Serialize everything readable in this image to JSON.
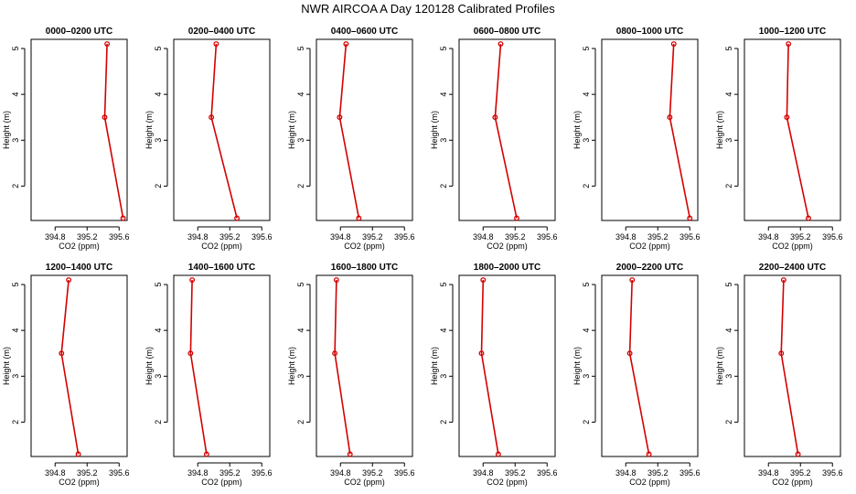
{
  "title": "NWR AIRCOA A  Day 120128  Calibrated Profiles",
  "colors": {
    "line": "#d40000",
    "frame": "#000000"
  },
  "axes": {
    "xlabel": "CO2 (ppm)",
    "ylabel": "Height (m)",
    "xlim": [
      394.5,
      395.7
    ],
    "ylim": [
      1.25,
      5.2
    ],
    "xticks": [
      394.8,
      395.2,
      395.6
    ],
    "xtick_labels": [
      "394.8",
      "395.2",
      "395.6"
    ],
    "yticks": [
      2,
      3,
      4,
      5
    ],
    "ytick_labels": [
      "2",
      "3",
      "4",
      "5"
    ]
  },
  "chart_data": [
    {
      "type": "line",
      "title": "0000–0200 UTC",
      "heights": [
        5.1,
        3.5,
        1.3
      ],
      "co2": [
        395.45,
        395.42,
        395.65
      ]
    },
    {
      "type": "line",
      "title": "0200–0400 UTC",
      "heights": [
        5.1,
        3.5,
        1.3
      ],
      "co2": [
        395.03,
        394.97,
        395.29
      ]
    },
    {
      "type": "line",
      "title": "0400–0600 UTC",
      "heights": [
        5.1,
        3.5,
        1.3
      ],
      "co2": [
        394.87,
        394.79,
        395.03
      ]
    },
    {
      "type": "line",
      "title": "0600–0800 UTC",
      "heights": [
        5.1,
        3.5,
        1.3
      ],
      "co2": [
        395.02,
        394.95,
        395.22
      ]
    },
    {
      "type": "line",
      "title": "0800–1000 UTC",
      "heights": [
        5.1,
        3.5,
        1.3
      ],
      "co2": [
        395.4,
        395.35,
        395.6
      ]
    },
    {
      "type": "line",
      "title": "1000–1200 UTC",
      "heights": [
        5.1,
        3.5,
        1.3
      ],
      "co2": [
        395.05,
        395.03,
        395.3
      ]
    },
    {
      "type": "line",
      "title": "1200–1400 UTC",
      "heights": [
        5.1,
        3.5,
        1.3
      ],
      "co2": [
        394.97,
        394.88,
        395.09
      ]
    },
    {
      "type": "line",
      "title": "1400–1600 UTC",
      "heights": [
        5.1,
        3.5,
        1.3
      ],
      "co2": [
        394.73,
        394.71,
        394.91
      ]
    },
    {
      "type": "line",
      "title": "1600–1800 UTC",
      "heights": [
        5.1,
        3.5,
        1.3
      ],
      "co2": [
        394.75,
        394.73,
        394.92
      ]
    },
    {
      "type": "line",
      "title": "1800–2000 UTC",
      "heights": [
        5.1,
        3.5,
        1.3
      ],
      "co2": [
        394.8,
        394.78,
        394.99
      ]
    },
    {
      "type": "line",
      "title": "2000–2200 UTC",
      "heights": [
        5.1,
        3.5,
        1.3
      ],
      "co2": [
        394.88,
        394.85,
        395.09
      ]
    },
    {
      "type": "line",
      "title": "2200–2400 UTC",
      "heights": [
        5.1,
        3.5,
        1.3
      ],
      "co2": [
        394.99,
        394.96,
        395.17
      ]
    }
  ]
}
